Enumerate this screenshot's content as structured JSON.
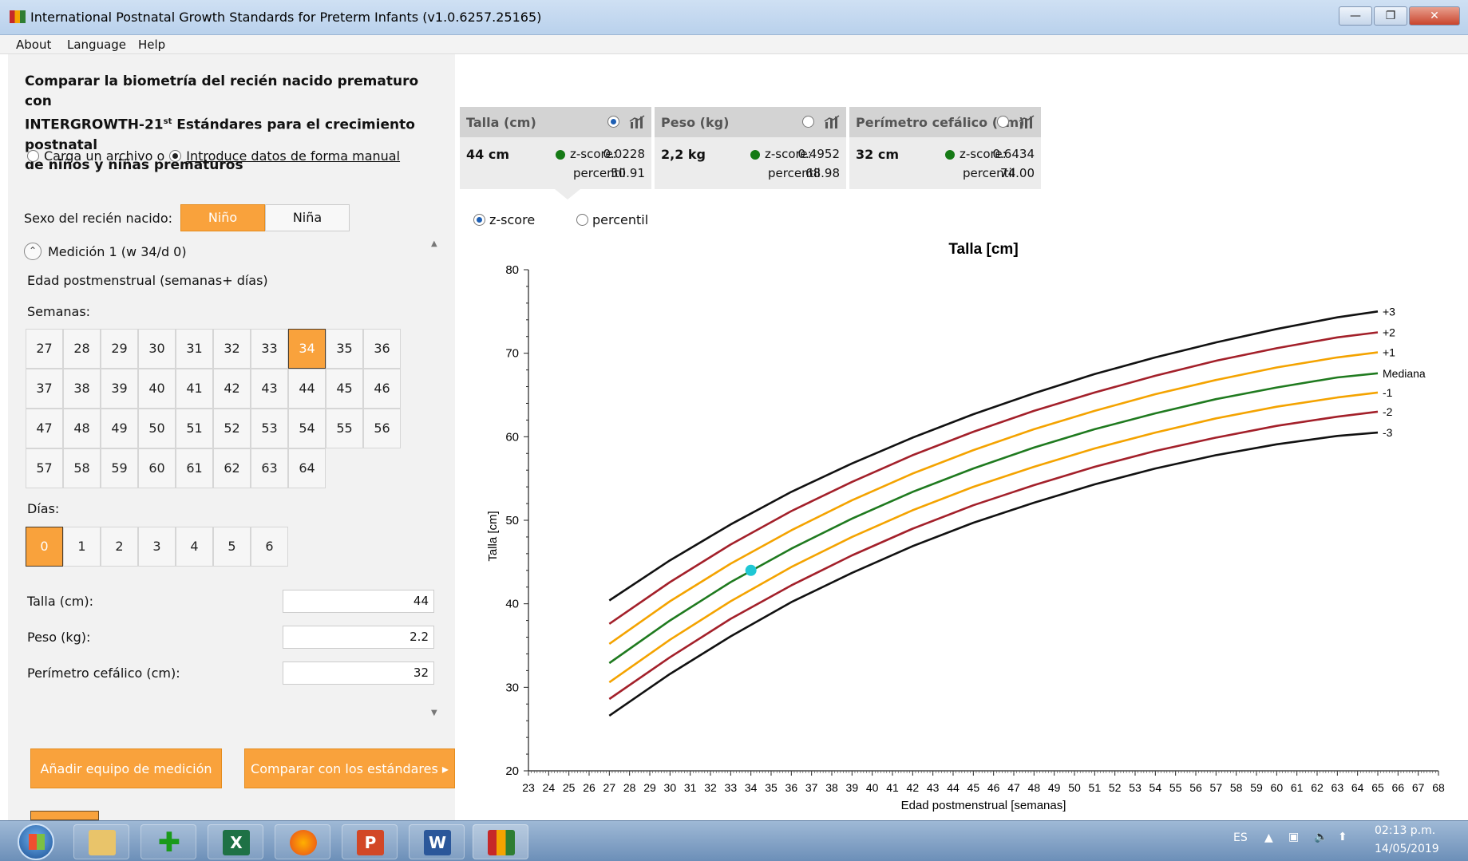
{
  "window": {
    "title": "International Postnatal Growth Standards for Preterm Infants (v1.0.6257.25165)",
    "controls": {
      "minimize": "—",
      "restore": "❐",
      "close": "✕"
    }
  },
  "menu": [
    "About",
    "Language",
    "Help"
  ],
  "left": {
    "heading_line1": "Comparar la biometría del recién nacido prematuro con",
    "heading_line2_a": "INTERGROWTH-21",
    "heading_sup": "st",
    "heading_line2_b": " Estándares para el crecimiento postnatal",
    "heading_line3": "de niños y niñas prematuros",
    "source_file_label": "Carga un archivo o",
    "source_manual_label": "Introduce datos de forma manual",
    "sex_label": "Sexo del recién nacido:",
    "sex_male": "Niño",
    "sex_female": "Niña",
    "measurement_title": "Medición 1 (w 34/d 0)",
    "pm_age_label": "Edad postmenstrual (semanas+ días)",
    "weeks_label": "Semanas:",
    "weeks": [
      "27",
      "28",
      "29",
      "30",
      "31",
      "32",
      "33",
      "34",
      "35",
      "36",
      "37",
      "38",
      "39",
      "40",
      "41",
      "42",
      "43",
      "44",
      "45",
      "46",
      "47",
      "48",
      "49",
      "50",
      "51",
      "52",
      "53",
      "54",
      "55",
      "56",
      "57",
      "58",
      "59",
      "60",
      "61",
      "62",
      "63",
      "64"
    ],
    "selected_week": "34",
    "days_label": "Días:",
    "days": [
      "0",
      "1",
      "2",
      "3",
      "4",
      "5",
      "6"
    ],
    "selected_day": "0",
    "fields": {
      "length_label": "Talla (cm):",
      "length_value": "44",
      "weight_label": "Peso (kg):",
      "weight_value": "2.2",
      "hc_label": "Perímetro cefálico (cm):",
      "hc_value": "32"
    },
    "add_button": "Añadir equipo de medición",
    "compare_button": "Comparar con los estándares"
  },
  "cards": [
    {
      "title": "Talla (cm)",
      "value": "44 cm",
      "z_label": "z-score:",
      "z_value": "0.0228",
      "p_label": "percentil",
      "p_value": "50.91"
    },
    {
      "title": "Peso (kg)",
      "value": "2,2 kg",
      "z_label": "z-score:",
      "z_value": "0.4952",
      "p_label": "percentil",
      "p_value": "68.98"
    },
    {
      "title": "Perímetro cefálico (cm)",
      "value": "32 cm",
      "z_label": "z-score:",
      "z_value": "0.6434",
      "p_label": "percentil",
      "p_value": "74.00"
    }
  ],
  "mode": {
    "zscore": "z-score",
    "percentile": "percentil",
    "selected": "z-score"
  },
  "colors": {
    "accent": "#f9a23c",
    "status_green": "#157a15",
    "sd3": "#111111",
    "sd2": "#a3202a",
    "sd1": "#f4a300",
    "median": "#1f7a1f",
    "point": "#1fc7d4"
  },
  "chart_data": {
    "type": "line",
    "title": "Talla [cm]",
    "xlabel": "Edad postmenstrual [semanas]",
    "ylabel": "Talla [cm]",
    "xlim": [
      23,
      68
    ],
    "ylim": [
      20,
      80
    ],
    "xticks": [
      23,
      24,
      25,
      26,
      27,
      28,
      29,
      30,
      31,
      32,
      33,
      34,
      35,
      36,
      37,
      38,
      39,
      40,
      41,
      42,
      43,
      44,
      45,
      46,
      47,
      48,
      49,
      50,
      51,
      52,
      53,
      54,
      55,
      56,
      57,
      58,
      59,
      60,
      61,
      62,
      63,
      64,
      65,
      66,
      67,
      68
    ],
    "yticks": [
      20,
      30,
      40,
      50,
      60,
      70,
      80
    ],
    "x": [
      27,
      30,
      33,
      36,
      39,
      42,
      45,
      48,
      51,
      54,
      57,
      60,
      63,
      65
    ],
    "series": [
      {
        "name": "+3",
        "color": "#111111",
        "values": [
          40.4,
          45.2,
          49.5,
          53.4,
          56.8,
          59.9,
          62.7,
          65.2,
          67.5,
          69.5,
          71.3,
          72.9,
          74.3,
          75.0
        ]
      },
      {
        "name": "+2",
        "color": "#a3202a",
        "values": [
          37.6,
          42.6,
          47.1,
          51.1,
          54.6,
          57.8,
          60.6,
          63.1,
          65.3,
          67.3,
          69.1,
          70.6,
          71.9,
          72.5
        ]
      },
      {
        "name": "+1",
        "color": "#f4a300",
        "values": [
          35.2,
          40.3,
          44.8,
          48.8,
          52.4,
          55.6,
          58.4,
          60.9,
          63.1,
          65.1,
          66.8,
          68.3,
          69.5,
          70.1
        ]
      },
      {
        "name": "Mediana",
        "color": "#1f7a1f",
        "values": [
          32.9,
          38.0,
          42.6,
          46.6,
          50.2,
          53.4,
          56.2,
          58.7,
          60.9,
          62.8,
          64.5,
          65.9,
          67.1,
          67.6
        ]
      },
      {
        "name": "-1",
        "color": "#f4a300",
        "values": [
          30.6,
          35.7,
          40.3,
          44.4,
          48.0,
          51.2,
          54.0,
          56.4,
          58.6,
          60.5,
          62.2,
          63.6,
          64.7,
          65.3
        ]
      },
      {
        "name": "-2",
        "color": "#a3202a",
        "values": [
          28.6,
          33.6,
          38.2,
          42.2,
          45.8,
          49.0,
          51.8,
          54.2,
          56.4,
          58.3,
          59.9,
          61.3,
          62.4,
          63.0
        ]
      },
      {
        "name": "-3",
        "color": "#111111",
        "values": [
          26.6,
          31.6,
          36.1,
          40.2,
          43.7,
          46.9,
          49.7,
          52.1,
          54.3,
          56.2,
          57.8,
          59.1,
          60.1,
          60.5
        ]
      }
    ],
    "points": [
      {
        "x": 34,
        "y": 44
      }
    ]
  },
  "taskbar": {
    "lang": "ES",
    "time": "02:13 p.m.",
    "date": "14/05/2019"
  }
}
